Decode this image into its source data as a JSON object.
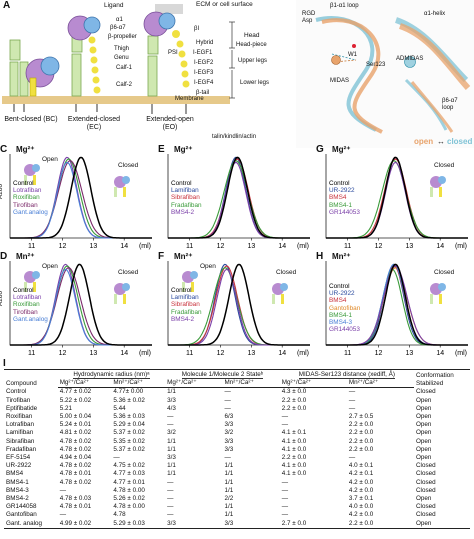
{
  "panels": {
    "A": {
      "label": "A",
      "top_labels": [
        "Ligand",
        "ECM or cell surface"
      ],
      "integrin_labels": [
        "α1",
        "β6-α7",
        "β-propeller",
        "βI",
        "Thigh",
        "Genu",
        "Calf-1",
        "Calf-2",
        "Hybrid",
        "PSI",
        "I-EGF1",
        "I-EGF2",
        "I-EGF3",
        "I-EGF4",
        "β-tail",
        "Membrane"
      ],
      "bracket_labels": [
        "Head",
        "Head-piece",
        "Upper legs",
        "Lower legs"
      ],
      "state_labels": [
        "Bent-closed (BC)",
        "Extended-closed (EC)",
        "Extended-open (EO)"
      ],
      "bottom_label": "talin/kindlin/actin",
      "alpha": "α",
      "beta": "β"
    },
    "B": {
      "label": "B",
      "labels": [
        "RGD Asp",
        "β1-α1 loop",
        "α1-helix",
        "W1",
        "Ser123",
        "MIDAS",
        "ADMIDAS",
        "β6-α7 loop"
      ],
      "legend_open": "open",
      "legend_arrow": "↔",
      "legend_closed": "closed",
      "colors": {
        "open": "#e8a36b",
        "closed": "#7fc3d6"
      }
    },
    "traces": {
      "C": {
        "label": "C",
        "ion": "Mg²⁺",
        "badge_open": "Open",
        "badge_closed": "Closed",
        "legend": [
          {
            "name": "Control",
            "color": "#000000"
          },
          {
            "name": "Lotrafiban",
            "color": "#7a3fa8"
          },
          {
            "name": "Roxifiban",
            "color": "#3a9a3a"
          },
          {
            "name": "Tirofiban",
            "color": "#7b2a6a"
          },
          {
            "name": "Gant.analog",
            "color": "#4a7fd6"
          }
        ]
      },
      "D": {
        "label": "D",
        "ion": "Mn²⁺",
        "badge_open": "Open",
        "badge_closed": "Closed",
        "legend": [
          {
            "name": "Control",
            "color": "#000000"
          },
          {
            "name": "Lotrafiban",
            "color": "#7a3fa8"
          },
          {
            "name": "Roxifiban",
            "color": "#3a9a3a"
          },
          {
            "name": "Tirofiban",
            "color": "#7b2a6a"
          },
          {
            "name": "Gant.analog",
            "color": "#4a7fd6"
          }
        ]
      },
      "E": {
        "label": "E",
        "ion": "Mg²⁺",
        "badge_open": "",
        "badge_closed": "",
        "legend": [
          {
            "name": "Control",
            "color": "#000000"
          },
          {
            "name": "Lamifiban",
            "color": "#2b4a9e"
          },
          {
            "name": "Sibrafiban",
            "color": "#c8323c"
          },
          {
            "name": "Fradafiban",
            "color": "#3a9a3a"
          },
          {
            "name": "BMS4-2",
            "color": "#7a3fa8"
          }
        ]
      },
      "F": {
        "label": "F",
        "ion": "Mn²⁺",
        "badge_open": "Open",
        "badge_closed": "Closed",
        "legend": [
          {
            "name": "Control",
            "color": "#000000"
          },
          {
            "name": "Lamifiban",
            "color": "#2b4a9e"
          },
          {
            "name": "Sibrafiban",
            "color": "#c8323c"
          },
          {
            "name": "Fradafiban",
            "color": "#3a9a3a"
          },
          {
            "name": "BMS4-2",
            "color": "#7a3fa8"
          }
        ]
      },
      "G": {
        "label": "G",
        "ion": "Mg²⁺",
        "badge_open": "",
        "badge_closed": "Closed",
        "legend": [
          {
            "name": "Control",
            "color": "#000000"
          },
          {
            "name": "UR-2922",
            "color": "#2b4a9e"
          },
          {
            "name": "BMS4",
            "color": "#c8323c"
          },
          {
            "name": "BMS4-1",
            "color": "#3a9a3a"
          },
          {
            "name": "GR144053",
            "color": "#7a3fa8"
          }
        ]
      },
      "H": {
        "label": "H",
        "ion": "Mn²⁺",
        "badge_open": "",
        "badge_closed": "Closed",
        "legend": [
          {
            "name": "Control",
            "color": "#000000"
          },
          {
            "name": "UR-2922",
            "color": "#2b4a9e"
          },
          {
            "name": "BMS4",
            "color": "#c8323c"
          },
          {
            "name": "Gantofiban",
            "color": "#e08a2a"
          },
          {
            "name": "BMS4-1",
            "color": "#3a9a3a"
          },
          {
            "name": "BMS4-3",
            "color": "#4a7fd6"
          },
          {
            "name": "GR144053",
            "color": "#7a3fa8"
          }
        ]
      }
    },
    "axis": {
      "ylabel": "A280",
      "xticks": [
        "11",
        "12",
        "13",
        "14"
      ],
      "xunit": "(ml)"
    }
  },
  "chart_data": [
    {
      "type": "line",
      "panel": "C",
      "title": "Mg²⁺",
      "ylabel": "A280",
      "xlabel": "(ml)",
      "xlim": [
        10.3,
        14.9
      ],
      "series": [
        {
          "name": "Control",
          "peak_ml": 12.6
        },
        {
          "name": "Lotrafiban",
          "peak_ml": 12.15
        },
        {
          "name": "Roxifiban",
          "peak_ml": 12.2
        },
        {
          "name": "Tirofiban",
          "peak_ml": 12.25
        },
        {
          "name": "Gant.analog",
          "peak_ml": 12.15
        }
      ]
    },
    {
      "type": "line",
      "panel": "D",
      "title": "Mn²⁺",
      "ylabel": "A280",
      "xlabel": "(ml)",
      "xlim": [
        10.3,
        14.9
      ],
      "series": [
        {
          "name": "Control",
          "peak_ml": 12.55
        },
        {
          "name": "Lotrafiban",
          "peak_ml": 12.1
        },
        {
          "name": "Roxifiban",
          "peak_ml": 12.15
        },
        {
          "name": "Tirofiban",
          "peak_ml": 12.2
        },
        {
          "name": "Gant.analog",
          "peak_ml": 12.1
        }
      ]
    },
    {
      "type": "line",
      "panel": "E",
      "title": "Mg²⁺",
      "xlabel": "(ml)",
      "xlim": [
        10.3,
        14.9
      ],
      "series": [
        {
          "name": "Control",
          "peak_ml": 12.55
        },
        {
          "name": "Lamifiban",
          "peak_ml": 12.5
        },
        {
          "name": "Sibrafiban",
          "peak_ml": 12.55
        },
        {
          "name": "Fradafiban",
          "peak_ml": 12.5
        },
        {
          "name": "BMS4-2",
          "peak_ml": 12.5
        }
      ]
    },
    {
      "type": "line",
      "panel": "F",
      "title": "Mn²⁺",
      "xlabel": "(ml)",
      "xlim": [
        10.3,
        14.9
      ],
      "series": [
        {
          "name": "Control",
          "peak_ml": 12.6
        },
        {
          "name": "Lamifiban",
          "peak_ml": 12.15
        },
        {
          "name": "Sibrafiban",
          "peak_ml": 12.2
        },
        {
          "name": "Fradafiban",
          "peak_ml": 12.15
        },
        {
          "name": "BMS4-2",
          "peak_ml": 12.2
        }
      ]
    },
    {
      "type": "line",
      "panel": "G",
      "title": "Mg²⁺",
      "xlabel": "(ml)",
      "xlim": [
        10.3,
        14.9
      ],
      "series": [
        {
          "name": "Control",
          "peak_ml": 12.55
        },
        {
          "name": "UR-2922",
          "peak_ml": 12.55
        },
        {
          "name": "BMS4",
          "peak_ml": 12.55
        },
        {
          "name": "BMS4-1",
          "peak_ml": 12.5
        },
        {
          "name": "GR144053",
          "peak_ml": 12.55
        }
      ]
    },
    {
      "type": "line",
      "panel": "H",
      "title": "Mn²⁺",
      "xlabel": "(ml)",
      "xlim": [
        10.3,
        14.9
      ],
      "series": [
        {
          "name": "Control",
          "peak_ml": 12.55
        },
        {
          "name": "UR-2922",
          "peak_ml": 12.5
        },
        {
          "name": "BMS4",
          "peak_ml": 12.5
        },
        {
          "name": "Gantofiban",
          "peak_ml": 12.55
        },
        {
          "name": "BMS4-1",
          "peak_ml": 12.45
        },
        {
          "name": "BMS4-3",
          "peak_ml": 12.5
        },
        {
          "name": "GR144053",
          "peak_ml": 12.55
        }
      ]
    }
  ],
  "table": {
    "label": "I",
    "headers_top": {
      "compound": "Compound",
      "hydro": "Hydrodynamic radius (nm)ᵃ",
      "mol": "Molecule 1/Molecule 2 Stateᵇ",
      "midas": "MIDAS-Ser123 distance (xediff, Å)",
      "conf": "Conformation Stabilized"
    },
    "headers_sub": {
      "mg": "Mg²⁺/Ca²⁺",
      "mn": "Mn²⁺/Ca²⁺"
    },
    "rows": [
      {
        "c": "Control",
        "h1": "4.77 ± 0.02",
        "h2": "4.77± 0.00",
        "m1": "1/1",
        "m2": "—",
        "d1": "4.3 ± 0.0",
        "d2": "—",
        "s": "Closed"
      },
      {
        "c": "Tirofiban",
        "h1": "5.22 ± 0.02",
        "h2": "5.36 ± 0.02",
        "m1": "3/3",
        "m2": "—",
        "d1": "2.2 ± 0.0",
        "d2": "—",
        "s": "Open"
      },
      {
        "c": "Eptifibatide",
        "h1": "5.21",
        "h2": "5.44",
        "m1": "4/3",
        "m2": "—",
        "d1": "2.2 ± 0.0",
        "d2": "—",
        "s": "Open"
      },
      {
        "c": "Roxifiban",
        "h1": "5.00 ± 0.04",
        "h2": "5.36 ± 0.03",
        "m1": "—",
        "m2": "6/3",
        "d1": "—",
        "d2": "2.7 ± 0.5",
        "s": "Open"
      },
      {
        "c": "Lotrafiban",
        "h1": "5.24 ± 0.01",
        "h2": "5.29 ± 0.04",
        "m1": "—",
        "m2": "3/3",
        "d1": "—",
        "d2": "2.2 ± 0.0",
        "s": "Open"
      },
      {
        "c": "Lamifiban",
        "h1": "4.81 ± 0.02",
        "h2": "5.37 ± 0.02",
        "m1": "3/2",
        "m2": "3/2",
        "d1": "4.1 ± 0.1",
        "d2": "2.2 ± 0.0",
        "s": "Open"
      },
      {
        "c": "Sibrafiban",
        "h1": "4.78 ± 0.02",
        "h2": "5.35 ± 0.02",
        "m1": "1/1",
        "m2": "3/3",
        "d1": "4.1 ± 0.0",
        "d2": "2.2 ± 0.0",
        "s": "Open"
      },
      {
        "c": "Fradafiban",
        "h1": "4.78 ± 0.02",
        "h2": "5.37 ± 0.02",
        "m1": "1/1",
        "m2": "3/3",
        "d1": "4.1 ± 0.0",
        "d2": "2.2 ± 0.0",
        "s": "Open"
      },
      {
        "c": "EF-5154",
        "h1": "4.94 ± 0.04",
        "h2": "—",
        "m1": "3/3",
        "m2": "—",
        "d1": "2.2 ± 0.0",
        "d2": "—",
        "s": "Open"
      },
      {
        "c": "UR-2922",
        "h1": "4.78 ± 0.02",
        "h2": "4.75 ± 0.02",
        "m1": "1/1",
        "m2": "1/1",
        "d1": "4.1 ± 0.0",
        "d2": "4.0 ± 0.1",
        "s": "Closed"
      },
      {
        "c": "BMS4",
        "h1": "4.78 ± 0.01",
        "h2": "4.77 ± 0.03",
        "m1": "1/1",
        "m2": "1/1",
        "d1": "4.1 ± 0.0",
        "d2": "4.2 ± 0.1",
        "s": "Closed"
      },
      {
        "c": "BMS4-1",
        "h1": "4.78 ± 0.02",
        "h2": "4.77 ± 0.01",
        "m1": "—",
        "m2": "1/1",
        "d1": "—",
        "d2": "4.2 ± 0.0",
        "s": "Closed"
      },
      {
        "c": "BMS4-3",
        "h1": "—",
        "h2": "4.78 ± 0.00",
        "m1": "—",
        "m2": "1/1",
        "d1": "—",
        "d2": "4.2 ± 0.0",
        "s": "Closed"
      },
      {
        "c": "BMS4-2",
        "h1": "4.78 ± 0.03",
        "h2": "5.26 ± 0.02",
        "m1": "—",
        "m2": "2/2",
        "d1": "—",
        "d2": "3.7 ± 0.1",
        "s": "Open"
      },
      {
        "c": "GR144058",
        "h1": "4.78 ± 0.01",
        "h2": "4.78 ± 0.00",
        "m1": "—",
        "m2": "1/1",
        "d1": "—",
        "d2": "4.0 ± 0.0",
        "s": "Closed"
      },
      {
        "c": "Gantofiban",
        "h1": "—",
        "h2": "4.78",
        "m1": "—",
        "m2": "1/1",
        "d1": "—",
        "d2": "4.2 ± 0.0",
        "s": "Closed"
      },
      {
        "c": "Gant. analog",
        "h1": "4.99 ± 0.02",
        "h2": "5.29 ± 0.03",
        "m1": "3/3",
        "m2": "3/3",
        "d1": "2.7 ± 0.0",
        "d2": "2.2 ± 0.0",
        "s": "Open"
      }
    ]
  }
}
